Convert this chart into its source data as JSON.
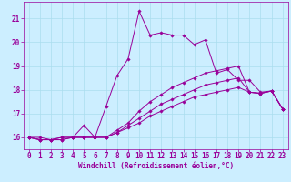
{
  "xlabel": "Windchill (Refroidissement éolien,°C)",
  "background_color": "#cceeff",
  "grid_color": "#aaddee",
  "line_color": "#990099",
  "xlim": [
    -0.5,
    23.5
  ],
  "ylim": [
    15.5,
    21.7
  ],
  "yticks": [
    16,
    17,
    18,
    19,
    20,
    21
  ],
  "xticks": [
    0,
    1,
    2,
    3,
    4,
    5,
    6,
    7,
    8,
    9,
    10,
    11,
    12,
    13,
    14,
    15,
    16,
    17,
    18,
    19,
    20,
    21,
    22,
    23
  ],
  "curves": [
    [
      16.0,
      16.0,
      15.9,
      15.9,
      16.0,
      16.5,
      16.0,
      17.3,
      18.6,
      19.3,
      21.3,
      20.3,
      20.4,
      20.3,
      20.3,
      19.9,
      20.1,
      18.7,
      18.85,
      18.4,
      18.4,
      17.9,
      17.95,
      17.2
    ],
    [
      16.0,
      15.9,
      15.9,
      15.9,
      16.0,
      16.0,
      16.0,
      16.0,
      16.3,
      16.6,
      17.1,
      17.5,
      17.8,
      18.1,
      18.3,
      18.5,
      18.7,
      18.8,
      18.9,
      19.0,
      17.9,
      17.85,
      17.95,
      17.2
    ],
    [
      16.0,
      15.9,
      15.9,
      16.0,
      16.0,
      16.0,
      16.0,
      16.0,
      16.2,
      16.5,
      16.8,
      17.1,
      17.4,
      17.6,
      17.8,
      18.0,
      18.2,
      18.3,
      18.4,
      18.5,
      17.9,
      17.85,
      17.95,
      17.2
    ],
    [
      16.0,
      15.9,
      15.9,
      16.0,
      16.0,
      16.0,
      16.0,
      16.0,
      16.2,
      16.4,
      16.6,
      16.9,
      17.1,
      17.3,
      17.5,
      17.7,
      17.8,
      17.9,
      18.0,
      18.1,
      17.9,
      17.85,
      17.95,
      17.2
    ]
  ],
  "tick_fontsize": 5.5,
  "xlabel_fontsize": 5.5
}
